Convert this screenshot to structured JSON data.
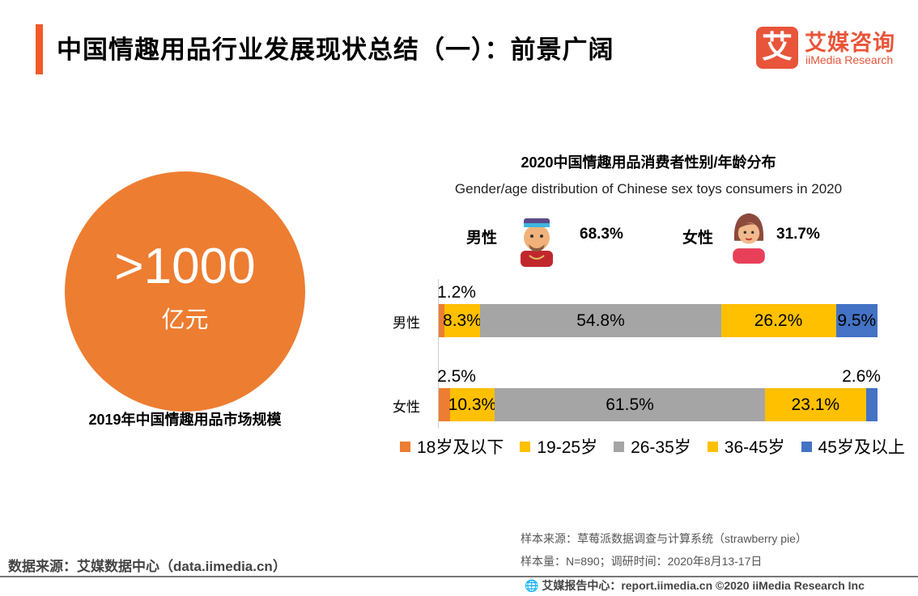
{
  "header": {
    "title": "中国情趣用品行业发展现状总结（一）：前景广阔",
    "logo_mark": "艾",
    "logo_cn": "艾媒咨询",
    "logo_en": "iiMedia Research"
  },
  "left": {
    "value": ">1000",
    "unit": "亿元",
    "caption": "2019年中国情趣用品市场规模"
  },
  "gender": {
    "male_label": "男性",
    "male_pct": "68.3%",
    "female_label": "女性",
    "female_pct": "31.7%"
  },
  "colors": {
    "accent": "#f05a28",
    "orange": "#ed7d31",
    "yellow": "#ffc000",
    "gray": "#a5a5a5",
    "blue": "#4472c4"
  },
  "chart_data": {
    "type": "bar",
    "orientation": "horizontal",
    "stacked": true,
    "percent": true,
    "title": "2020中国情趣用品消费者性别/年龄分布",
    "subtitle": "Gender/age distribution of Chinese sex toys consumers in 2020",
    "categories": [
      "男性",
      "女性"
    ],
    "series": [
      {
        "name": "18岁及以下",
        "color": "#ed7d31",
        "values": [
          1.2,
          2.5
        ]
      },
      {
        "name": "19-25岁",
        "color": "#ffc000",
        "values": [
          8.3,
          10.3
        ]
      },
      {
        "name": "26-35岁",
        "color": "#a5a5a5",
        "values": [
          54.8,
          61.5
        ]
      },
      {
        "name": "36-45岁",
        "color": "#ffc000",
        "values": [
          26.2,
          23.1
        ]
      },
      {
        "name": "45岁及以上",
        "color": "#4472c4",
        "values": [
          9.5,
          2.6
        ]
      }
    ],
    "legend": "bottom",
    "grid": false
  },
  "footer": {
    "source": "数据来源：艾媒数据中心（data.iimedia.cn）",
    "sample_source": "样本来源：草莓派数据调查与计算系统（strawberry pie）",
    "sample_size": "样本量：N=890；调研时间：2020年8月13-17日",
    "copyright": "艾媒报告中心：report.iimedia.cn   ©2020  iiMedia Research  Inc"
  }
}
